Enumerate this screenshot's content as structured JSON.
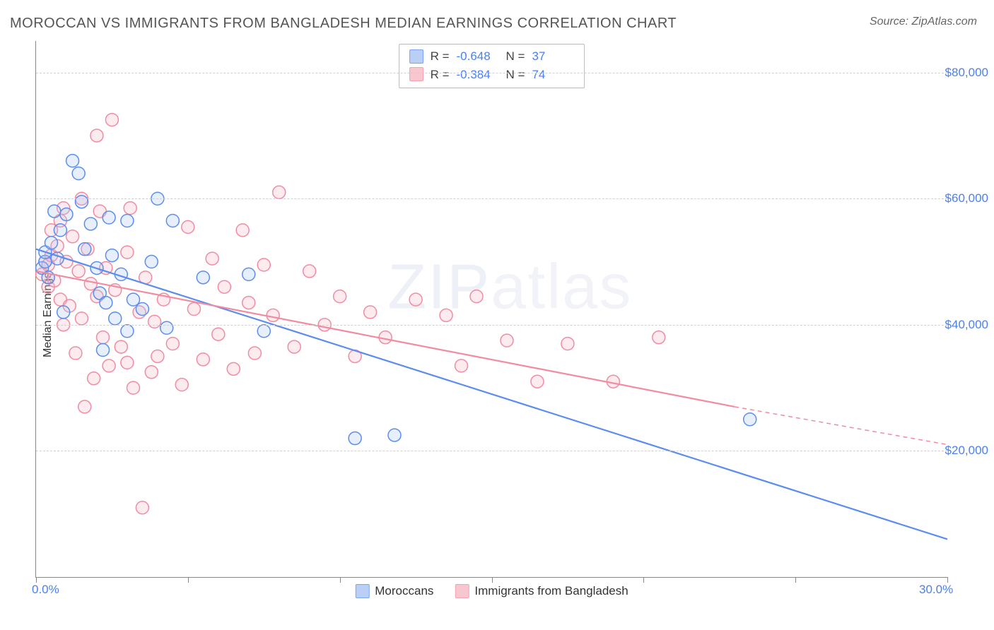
{
  "title": "MOROCCAN VS IMMIGRANTS FROM BANGLADESH MEDIAN EARNINGS CORRELATION CHART",
  "source": "Source: ZipAtlas.com",
  "yaxis_label": "Median Earnings",
  "watermark_bold": "ZIP",
  "watermark_thin": "atlas",
  "chart": {
    "type": "scatter",
    "xlim": [
      0,
      30
    ],
    "ylim": [
      0,
      85000
    ],
    "x_tick_positions": [
      0,
      5,
      10,
      15,
      20,
      25,
      30
    ],
    "x_tick_labels_shown": {
      "0": "0.0%",
      "30": "30.0%"
    },
    "y_gridlines": [
      20000,
      40000,
      60000,
      80000
    ],
    "y_tick_labels": {
      "20000": "$20,000",
      "40000": "$40,000",
      "60000": "$60,000",
      "80000": "$80,000"
    },
    "grid_color": "#d0d0d0",
    "axis_color": "#888888",
    "label_color": "#4a80f0",
    "background_color": "#ffffff",
    "marker_radius": 9,
    "marker_stroke_width": 1.5,
    "marker_fill_opacity": 0.28,
    "trendline_width": 2.2
  },
  "series": [
    {
      "name": "Moroccans",
      "color_stroke": "#5b8def",
      "color_fill": "#a9c4f5",
      "R": "-0.648",
      "N": "37",
      "trendline": {
        "x1": 0,
        "y1": 52000,
        "x2": 30,
        "y2": 6000
      },
      "points": [
        [
          0.2,
          49000
        ],
        [
          0.3,
          50000
        ],
        [
          0.3,
          51500
        ],
        [
          0.4,
          47500
        ],
        [
          0.5,
          53000
        ],
        [
          0.6,
          58000
        ],
        [
          0.7,
          50500
        ],
        [
          0.8,
          55000
        ],
        [
          0.9,
          42000
        ],
        [
          1.0,
          57500
        ],
        [
          1.2,
          66000
        ],
        [
          1.4,
          64000
        ],
        [
          1.5,
          59500
        ],
        [
          1.6,
          52000
        ],
        [
          1.8,
          56000
        ],
        [
          2.0,
          49000
        ],
        [
          2.1,
          45000
        ],
        [
          2.2,
          36000
        ],
        [
          2.3,
          43500
        ],
        [
          2.4,
          57000
        ],
        [
          2.6,
          41000
        ],
        [
          2.8,
          48000
        ],
        [
          3.0,
          39000
        ],
        [
          3.0,
          56500
        ],
        [
          3.2,
          44000
        ],
        [
          3.5,
          42500
        ],
        [
          3.8,
          50000
        ],
        [
          4.0,
          60000
        ],
        [
          4.3,
          39500
        ],
        [
          4.5,
          56500
        ],
        [
          5.5,
          47500
        ],
        [
          7.0,
          48000
        ],
        [
          7.5,
          39000
        ],
        [
          10.5,
          22000
        ],
        [
          11.8,
          22500
        ],
        [
          23.5,
          25000
        ],
        [
          2.5,
          51000
        ]
      ]
    },
    {
      "name": "Immigrants from Bangladesh",
      "color_stroke": "#f08ca0",
      "color_fill": "#f7b8c4",
      "R": "-0.384",
      "N": "74",
      "trendline": {
        "x1": 0,
        "y1": 48500,
        "x2": 23,
        "y2": 27000
      },
      "trendline_ext": {
        "x1": 23,
        "y1": 27000,
        "x2": 30,
        "y2": 21000
      },
      "points": [
        [
          0.2,
          48000
        ],
        [
          0.3,
          50000
        ],
        [
          0.4,
          49500
        ],
        [
          0.4,
          46000
        ],
        [
          0.5,
          51000
        ],
        [
          0.5,
          55000
        ],
        [
          0.6,
          47000
        ],
        [
          0.7,
          52500
        ],
        [
          0.8,
          56500
        ],
        [
          0.8,
          44000
        ],
        [
          0.9,
          58500
        ],
        [
          1.0,
          50000
        ],
        [
          1.1,
          43000
        ],
        [
          1.2,
          54000
        ],
        [
          1.3,
          35500
        ],
        [
          1.4,
          48500
        ],
        [
          1.5,
          60000
        ],
        [
          1.5,
          41000
        ],
        [
          1.7,
          52000
        ],
        [
          1.8,
          46500
        ],
        [
          1.9,
          31500
        ],
        [
          2.0,
          44500
        ],
        [
          2.0,
          70000
        ],
        [
          2.2,
          38000
        ],
        [
          2.3,
          49000
        ],
        [
          2.4,
          33500
        ],
        [
          2.5,
          72500
        ],
        [
          2.6,
          45500
        ],
        [
          2.8,
          36500
        ],
        [
          3.0,
          51500
        ],
        [
          3.0,
          34000
        ],
        [
          3.2,
          30000
        ],
        [
          3.4,
          42000
        ],
        [
          3.6,
          47500
        ],
        [
          3.8,
          32500
        ],
        [
          3.9,
          40500
        ],
        [
          4.0,
          35000
        ],
        [
          4.2,
          44000
        ],
        [
          4.5,
          37000
        ],
        [
          4.8,
          30500
        ],
        [
          5.0,
          55500
        ],
        [
          5.2,
          42500
        ],
        [
          5.5,
          34500
        ],
        [
          5.8,
          50500
        ],
        [
          6.0,
          38500
        ],
        [
          6.2,
          46000
        ],
        [
          6.5,
          33000
        ],
        [
          6.8,
          55000
        ],
        [
          7.0,
          43500
        ],
        [
          7.2,
          35500
        ],
        [
          7.5,
          49500
        ],
        [
          7.8,
          41500
        ],
        [
          8.0,
          61000
        ],
        [
          8.5,
          36500
        ],
        [
          9.0,
          48500
        ],
        [
          9.5,
          40000
        ],
        [
          10.0,
          44500
        ],
        [
          10.5,
          35000
        ],
        [
          11.0,
          42000
        ],
        [
          11.5,
          38000
        ],
        [
          12.5,
          44000
        ],
        [
          13.5,
          41500
        ],
        [
          14.0,
          33500
        ],
        [
          14.5,
          44500
        ],
        [
          15.5,
          37500
        ],
        [
          16.5,
          31000
        ],
        [
          17.5,
          37000
        ],
        [
          19.0,
          31000
        ],
        [
          20.5,
          38000
        ],
        [
          1.6,
          27000
        ],
        [
          3.5,
          11000
        ],
        [
          3.1,
          58500
        ],
        [
          0.9,
          40000
        ],
        [
          2.1,
          58000
        ]
      ]
    }
  ],
  "top_legend_labels": {
    "R": "R =",
    "N": "N ="
  },
  "bottom_legend": [
    "Moroccans",
    "Immigrants from Bangladesh"
  ]
}
